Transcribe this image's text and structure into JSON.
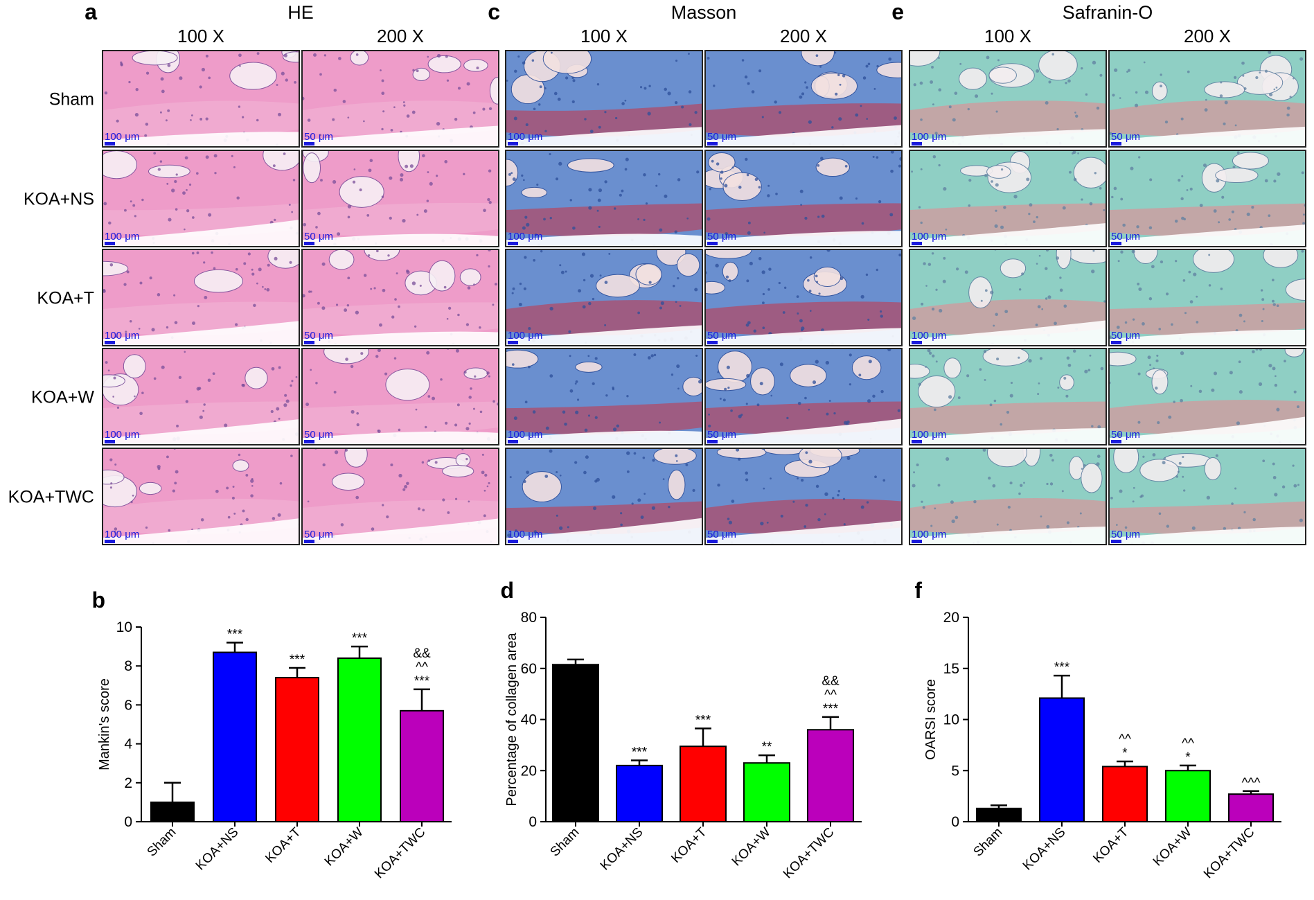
{
  "histology": {
    "columns": [
      "100 X",
      "200 X"
    ],
    "rows": [
      "Sham",
      "KOA+NS",
      "KOA+T",
      "KOA+W",
      "KOA+TWC"
    ],
    "scale_labels": [
      "100 μm",
      "50 μm"
    ],
    "blocks": [
      {
        "letter": "a",
        "stain": "HE",
        "tissue_color": "#ee9cc9",
        "cell_color": "#7a4f9a",
        "marrow_color": "#f7f0f5",
        "accent_color": "#f2b6d6"
      },
      {
        "letter": "c",
        "stain": "Masson",
        "tissue_color": "#6a8fcf",
        "cell_color": "#2e4f9a",
        "marrow_color": "#f3e1e1",
        "accent_color": "#c23a4f"
      },
      {
        "letter": "e",
        "stain": "Safranin-O",
        "tissue_color": "#8fcfc4",
        "cell_color": "#5f7fa0",
        "marrow_color": "#f3eef0",
        "accent_color": "#e48a93"
      }
    ]
  },
  "chart_data": [
    {
      "letter": "b",
      "type": "bar",
      "ylabel": "Mankin's score",
      "categories": [
        "Sham",
        "KOA+NS",
        "KOA+T",
        "KOA+W",
        "KOA+TWC"
      ],
      "values": [
        1.0,
        8.7,
        7.4,
        8.4,
        5.7
      ],
      "errors": [
        1.0,
        0.5,
        0.5,
        0.6,
        1.1
      ],
      "colors": [
        "#000000",
        "#0000ff",
        "#ff0000",
        "#00ff00",
        "#bb00bb"
      ],
      "ylim": [
        0,
        10
      ],
      "yticks": [
        "0",
        "2",
        "4",
        "6",
        "8",
        "10"
      ],
      "annotations": [
        [],
        [
          "***"
        ],
        [
          "***"
        ],
        [
          "***"
        ],
        [
          "&&",
          "^^",
          "***"
        ]
      ]
    },
    {
      "letter": "d",
      "type": "bar",
      "ylabel": "Percentage of collagen area",
      "categories": [
        "Sham",
        "KOA+NS",
        "KOA+T",
        "KOA+W",
        "KOA+TWC"
      ],
      "values": [
        61.5,
        22.0,
        29.5,
        23.0,
        36.0
      ],
      "errors": [
        2.0,
        2.0,
        7.0,
        3.0,
        5.0
      ],
      "colors": [
        "#000000",
        "#0000ff",
        "#ff0000",
        "#00ff00",
        "#bb00bb"
      ],
      "ylim": [
        0,
        80
      ],
      "yticks": [
        "0",
        "20",
        "40",
        "60",
        "80"
      ],
      "annotations": [
        [],
        [
          "***"
        ],
        [
          "***"
        ],
        [
          "**"
        ],
        [
          "&&",
          "^^",
          "***"
        ]
      ]
    },
    {
      "letter": "f",
      "type": "bar",
      "ylabel": "OARSI score",
      "categories": [
        "Sham",
        "KOA+NS",
        "KOA+T",
        "KOA+W",
        "KOA+TWC"
      ],
      "values": [
        1.3,
        12.1,
        5.4,
        5.0,
        2.7
      ],
      "errors": [
        0.3,
        2.2,
        0.5,
        0.5,
        0.3
      ],
      "colors": [
        "#000000",
        "#0000ff",
        "#ff0000",
        "#00ff00",
        "#bb00bb"
      ],
      "ylim": [
        0,
        20
      ],
      "yticks": [
        "0",
        "5",
        "10",
        "15",
        "20"
      ],
      "annotations": [
        [],
        [
          "***"
        ],
        [
          "^^",
          "*"
        ],
        [
          "^^",
          "*"
        ],
        [
          "^^^"
        ]
      ]
    }
  ]
}
